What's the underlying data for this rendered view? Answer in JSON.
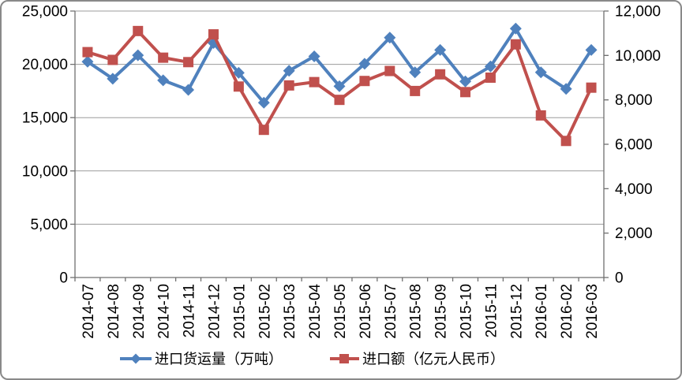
{
  "chart_data": {
    "type": "line",
    "title": "",
    "xlabel": "",
    "ylabel_left": "",
    "ylabel_right": "",
    "grid": true,
    "legend_position": "bottom",
    "categories": [
      "2014-07",
      "2014-08",
      "2014-09",
      "2014-10",
      "2014-11",
      "2014-12",
      "2015-01",
      "2015-02",
      "2015-03",
      "2015-04",
      "2015-05",
      "2015-06",
      "2015-07",
      "2015-08",
      "2015-09",
      "2015-10",
      "2015-11",
      "2015-12",
      "2016-01",
      "2016-02",
      "2016-03"
    ],
    "series": [
      {
        "name": "进口货运量（万吨）",
        "axis": "left",
        "color": "#4F81BD",
        "marker": "diamond",
        "values": [
          20250,
          18650,
          20850,
          18500,
          17600,
          22000,
          19200,
          16400,
          19400,
          20750,
          17950,
          20050,
          22500,
          19250,
          21350,
          18400,
          19800,
          23350,
          19250,
          17700,
          21350
        ]
      },
      {
        "name": "进口额（亿元人民币）",
        "axis": "right",
        "color": "#C0504D",
        "marker": "square",
        "values": [
          10150,
          9800,
          11100,
          9900,
          9700,
          10950,
          8600,
          6650,
          8650,
          8800,
          8000,
          8850,
          9300,
          8400,
          9150,
          8350,
          9000,
          10500,
          7300,
          6150,
          8550
        ]
      }
    ],
    "left_axis": {
      "min": 0,
      "max": 25000,
      "step": 5000,
      "tick_labels": [
        "0",
        "5,000",
        "10,000",
        "15,000",
        "20,000",
        "25,000"
      ]
    },
    "right_axis": {
      "min": 0,
      "max": 12000,
      "step": 2000,
      "tick_labels": [
        "0",
        "2,000",
        "4,000",
        "6,000",
        "8,000",
        "10,000",
        "12,000"
      ]
    }
  },
  "style": {
    "gridline_color": "#9C9C9C",
    "axis_color": "#707070",
    "frame_border_color": "#898989",
    "background_color": "#FFFFFF",
    "text_color": "#000000"
  }
}
